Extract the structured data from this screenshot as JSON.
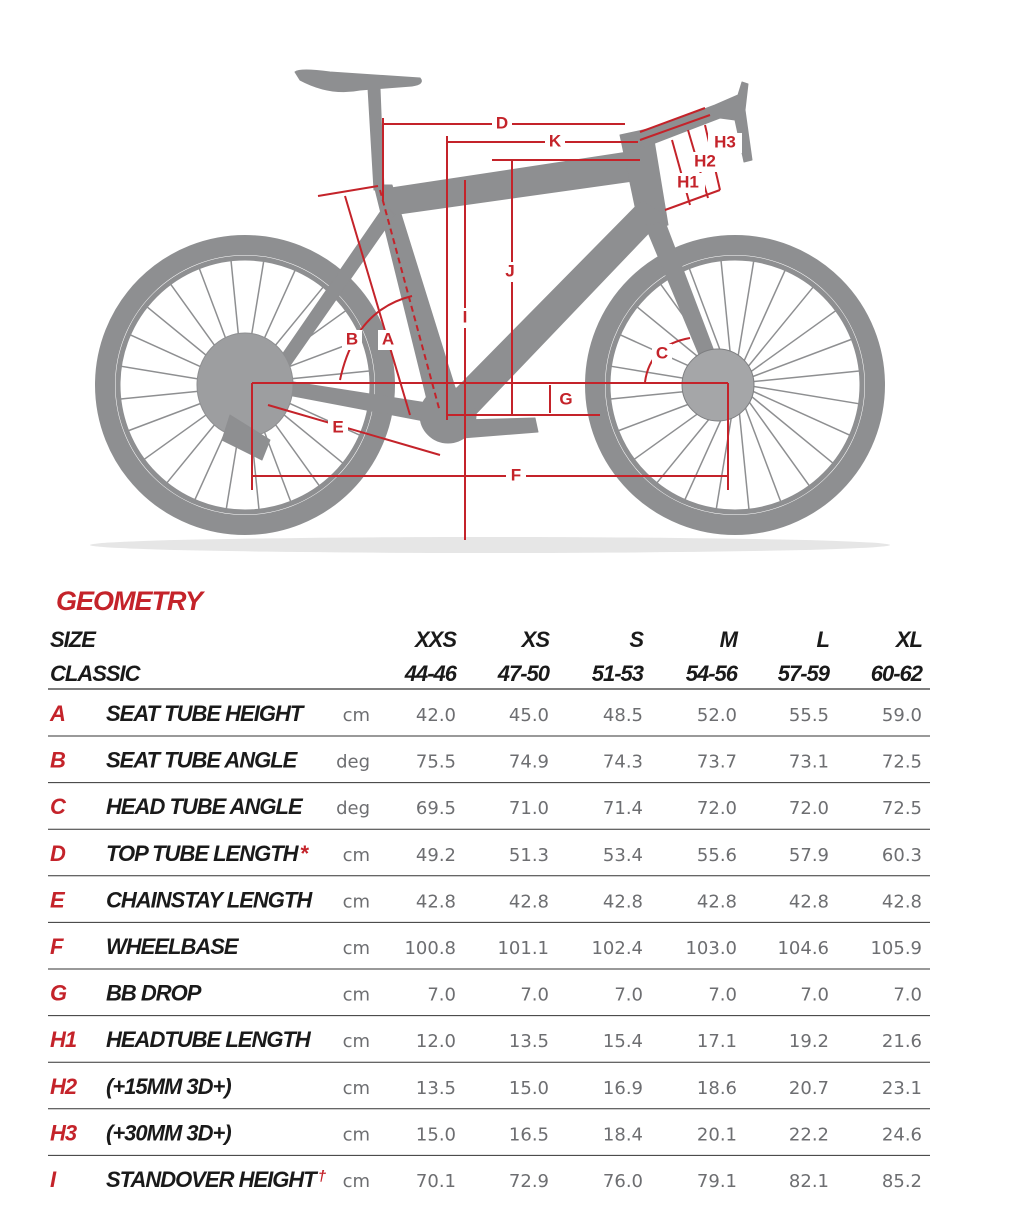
{
  "diagram": {
    "labels": {
      "D": "D",
      "K": "K",
      "H3": "H3",
      "H2": "H2",
      "H1": "H1",
      "J": "J",
      "I": "I",
      "B": "B",
      "A": "A",
      "C": "C",
      "G": "G",
      "E": "E",
      "F": "F"
    }
  },
  "table": {
    "title": "GEOMETRY",
    "size_label": "SIZE",
    "classic_label": "CLASSIC",
    "sizes": [
      "XXS",
      "XS",
      "S",
      "M",
      "L",
      "XL"
    ],
    "ranges": [
      "44-46",
      "47-50",
      "51-53",
      "54-56",
      "57-59",
      "60-62"
    ],
    "rows": [
      {
        "code": "A",
        "name": "SEAT TUBE HEIGHT",
        "unit": "cm",
        "values": [
          "42.0",
          "45.0",
          "48.5",
          "52.0",
          "55.5",
          "59.0"
        ]
      },
      {
        "code": "B",
        "name": "SEAT TUBE ANGLE",
        "unit": "deg",
        "values": [
          "75.5",
          "74.9",
          "74.3",
          "73.7",
          "73.1",
          "72.5"
        ]
      },
      {
        "code": "C",
        "name": "HEAD TUBE ANGLE",
        "unit": "deg",
        "values": [
          "69.5",
          "71.0",
          "71.4",
          "72.0",
          "72.0",
          "72.5"
        ]
      },
      {
        "code": "D",
        "name": "TOP TUBE LENGTH",
        "mark": "*",
        "unit": "cm",
        "values": [
          "49.2",
          "51.3",
          "53.4",
          "55.6",
          "57.9",
          "60.3"
        ]
      },
      {
        "code": "E",
        "name": "CHAINSTAY LENGTH",
        "unit": "cm",
        "values": [
          "42.8",
          "42.8",
          "42.8",
          "42.8",
          "42.8",
          "42.8"
        ]
      },
      {
        "code": "F",
        "name": "WHEELBASE",
        "unit": "cm",
        "values": [
          "100.8",
          "101.1",
          "102.4",
          "103.0",
          "104.6",
          "105.9"
        ]
      },
      {
        "code": "G",
        "name": "BB DROP",
        "unit": "cm",
        "values": [
          "7.0",
          "7.0",
          "7.0",
          "7.0",
          "7.0",
          "7.0"
        ]
      },
      {
        "code": "H1",
        "name": "HEADTUBE LENGTH",
        "unit": "cm",
        "values": [
          "12.0",
          "13.5",
          "15.4",
          "17.1",
          "19.2",
          "21.6"
        ]
      },
      {
        "code": "H2",
        "name": "(+15MM 3D+)",
        "unit": "cm",
        "values": [
          "13.5",
          "15.0",
          "16.9",
          "18.6",
          "20.7",
          "23.1"
        ]
      },
      {
        "code": "H3",
        "name": "(+30MM 3D+)",
        "unit": "cm",
        "values": [
          "15.0",
          "16.5",
          "18.4",
          "20.1",
          "22.2",
          "24.6"
        ]
      },
      {
        "code": "I",
        "name": "STANDOVER HEIGHT",
        "mark": "†",
        "unit": "cm",
        "values": [
          "70.1",
          "72.9",
          "76.0",
          "79.1",
          "82.1",
          "85.2"
        ]
      }
    ]
  }
}
